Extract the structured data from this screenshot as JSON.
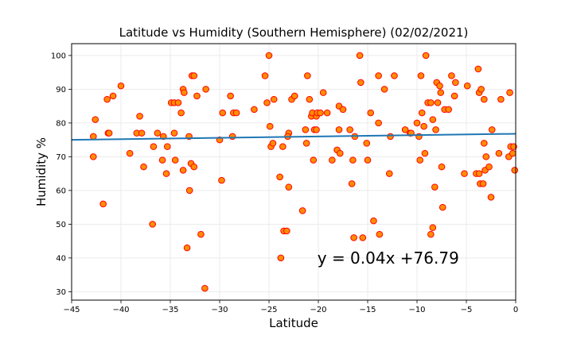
{
  "chart_data": {
    "type": "scatter",
    "title": "Latitude vs Humidity (Southern Hemisphere) (02/02/2021)",
    "xlabel": "Latitude",
    "ylabel": "Humidity %",
    "xlim": [
      -45,
      0
    ],
    "ylim": [
      27.5,
      103.5
    ],
    "x_ticks": [
      -45,
      -40,
      -35,
      -30,
      -25,
      -20,
      -15,
      -10,
      -5,
      0
    ],
    "y_ticks": [
      30,
      40,
      50,
      60,
      70,
      80,
      90,
      100
    ],
    "grid": true,
    "regression": {
      "slope": 0.04,
      "intercept": 76.79,
      "x_start": -45,
      "x_end": 0
    },
    "annotation": {
      "text": "y = 0.04x +76.79",
      "x": -20.1,
      "y": 40
    },
    "colors": {
      "marker_fill": "#ff8c00",
      "marker_edge": "#ff0000",
      "line": "#1f77b4",
      "grid": "#e6e6e6"
    },
    "points": [
      [
        -42.8,
        70
      ],
      [
        -42.8,
        76
      ],
      [
        -42.6,
        81
      ],
      [
        -41.8,
        56
      ],
      [
        -41.4,
        87
      ],
      [
        -41.3,
        77
      ],
      [
        -41.2,
        77
      ],
      [
        -40.8,
        88
      ],
      [
        -40,
        91
      ],
      [
        -39.1,
        71
      ],
      [
        -38.4,
        77
      ],
      [
        -38.1,
        82
      ],
      [
        -37.9,
        77
      ],
      [
        -37.7,
        67
      ],
      [
        -36.8,
        50
      ],
      [
        -36.7,
        73
      ],
      [
        -36.3,
        77
      ],
      [
        -35.8,
        69
      ],
      [
        -35.7,
        76
      ],
      [
        -35.4,
        65
      ],
      [
        -35.3,
        73
      ],
      [
        -34.9,
        86
      ],
      [
        -34.6,
        86
      ],
      [
        -34.6,
        77
      ],
      [
        -34.5,
        69
      ],
      [
        -34.2,
        86
      ],
      [
        -33.9,
        83
      ],
      [
        -33.7,
        66
      ],
      [
        -33.7,
        90
      ],
      [
        -33.6,
        89
      ],
      [
        -33.3,
        43
      ],
      [
        -33.1,
        76
      ],
      [
        -33.05,
        60
      ],
      [
        -32.9,
        68
      ],
      [
        -32.8,
        94
      ],
      [
        -32.6,
        94
      ],
      [
        -32.6,
        67
      ],
      [
        -32.3,
        88
      ],
      [
        -31.9,
        47
      ],
      [
        -31.5,
        31
      ],
      [
        -31.4,
        90
      ],
      [
        -30,
        75
      ],
      [
        -29.8,
        63
      ],
      [
        -29.7,
        83
      ],
      [
        -28.9,
        88
      ],
      [
        -28.7,
        76
      ],
      [
        -28.6,
        83
      ],
      [
        -28.3,
        83
      ],
      [
        -26.5,
        84
      ],
      [
        -25.4,
        94
      ],
      [
        -25.2,
        86
      ],
      [
        -25,
        100
      ],
      [
        -24.9,
        79
      ],
      [
        -24.8,
        73
      ],
      [
        -24.6,
        74
      ],
      [
        -24.5,
        87
      ],
      [
        -23.9,
        64
      ],
      [
        -23.8,
        40
      ],
      [
        -23.6,
        73
      ],
      [
        -23.5,
        48
      ],
      [
        -23.2,
        48
      ],
      [
        -23,
        77
      ],
      [
        -23.1,
        76
      ],
      [
        -23,
        61
      ],
      [
        -22.7,
        87
      ],
      [
        -22.4,
        88
      ],
      [
        -21.6,
        54
      ],
      [
        -21.3,
        78
      ],
      [
        -21.2,
        74
      ],
      [
        -21.1,
        94
      ],
      [
        -20.9,
        87
      ],
      [
        -20.7,
        82
      ],
      [
        -20.6,
        83
      ],
      [
        -20.5,
        69
      ],
      [
        -20.4,
        78
      ],
      [
        -20.2,
        82
      ],
      [
        -20.2,
        78
      ],
      [
        -20.1,
        83
      ],
      [
        -19.8,
        83
      ],
      [
        -19.5,
        89
      ],
      [
        -19.1,
        83
      ],
      [
        -18.6,
        69
      ],
      [
        -18.1,
        72
      ],
      [
        -17.9,
        85
      ],
      [
        -17.9,
        78
      ],
      [
        -17.8,
        71
      ],
      [
        -17.5,
        84
      ],
      [
        -16.8,
        78
      ],
      [
        -16.6,
        62
      ],
      [
        -16.5,
        69
      ],
      [
        -16.4,
        46
      ],
      [
        -16.3,
        76
      ],
      [
        -15.8,
        100
      ],
      [
        -15.7,
        92
      ],
      [
        -15.5,
        46
      ],
      [
        -15.1,
        74
      ],
      [
        -15,
        69
      ],
      [
        -14.7,
        83
      ],
      [
        -14.4,
        51
      ],
      [
        -13.9,
        80
      ],
      [
        -13.9,
        94
      ],
      [
        -13.8,
        47
      ],
      [
        -13.3,
        90
      ],
      [
        -12.8,
        65
      ],
      [
        -12.7,
        76
      ],
      [
        -12.3,
        94
      ],
      [
        -11.2,
        78
      ],
      [
        -10.7,
        77
      ],
      [
        -10.6,
        77
      ],
      [
        -10.0,
        80
      ],
      [
        -9.8,
        76
      ],
      [
        -9.7,
        69
      ],
      [
        -9.6,
        94
      ],
      [
        -9.5,
        83
      ],
      [
        -9.3,
        79
      ],
      [
        -9.2,
        71
      ],
      [
        -9.1,
        100
      ],
      [
        -8.9,
        86
      ],
      [
        -8.6,
        86
      ],
      [
        -8.6,
        47
      ],
      [
        -8.4,
        81
      ],
      [
        -8.4,
        49
      ],
      [
        -8.2,
        61
      ],
      [
        -8.1,
        78
      ],
      [
        -8.0,
        92
      ],
      [
        -7.9,
        86
      ],
      [
        -7.7,
        91
      ],
      [
        -7.6,
        89
      ],
      [
        -7.5,
        67
      ],
      [
        -7.4,
        55
      ],
      [
        -7.2,
        84
      ],
      [
        -6.8,
        84
      ],
      [
        -6.5,
        94
      ],
      [
        -6.2,
        88
      ],
      [
        -6.1,
        92
      ],
      [
        -5.2,
        65
      ],
      [
        -4.9,
        91
      ],
      [
        -4.0,
        65
      ],
      [
        -3.8,
        96
      ],
      [
        -3.7,
        65
      ],
      [
        -3.7,
        89
      ],
      [
        -3.6,
        62
      ],
      [
        -3.5,
        90
      ],
      [
        -3.3,
        62
      ],
      [
        -3.2,
        87
      ],
      [
        -3.2,
        74
      ],
      [
        -3.1,
        66
      ],
      [
        -3.0,
        70
      ],
      [
        -2.7,
        67
      ],
      [
        -2.5,
        58
      ],
      [
        -2.4,
        78
      ],
      [
        -1.7,
        71
      ],
      [
        -1.5,
        87
      ],
      [
        -0.7,
        70
      ],
      [
        -0.6,
        89
      ],
      [
        -0.5,
        73
      ],
      [
        -0.3,
        71
      ],
      [
        -0.2,
        73
      ],
      [
        -0.1,
        66
      ]
    ]
  }
}
